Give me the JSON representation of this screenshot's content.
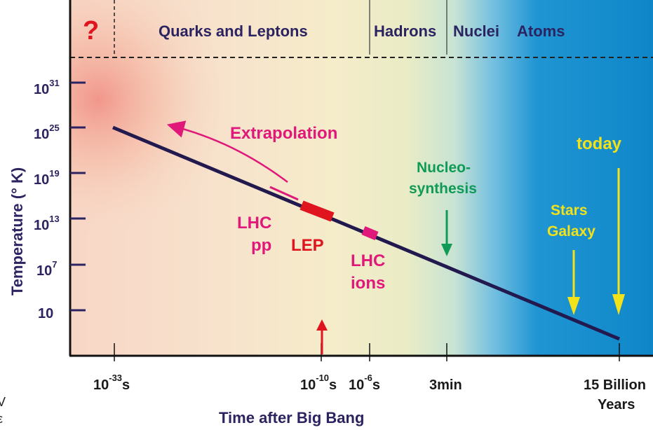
{
  "header": {
    "question_mark": "?",
    "eras": [
      "Quarks and Leptons",
      "Hadrons",
      "Nuclei",
      "Atoms"
    ]
  },
  "y_axis": {
    "title": "Temperature (° K)",
    "ticks": [
      {
        "base": "10",
        "exp": "31"
      },
      {
        "base": "10",
        "exp": "25"
      },
      {
        "base": "10",
        "exp": "19"
      },
      {
        "base": "10",
        "exp": "13"
      },
      {
        "base": "10",
        "exp": "7"
      },
      {
        "base": "10",
        "exp": ""
      }
    ]
  },
  "x_axis": {
    "title": "Time after Big Bang",
    "ticks": [
      {
        "base": "10",
        "exp": "-33",
        "unit": "s"
      },
      {
        "base": "10",
        "exp": "-10",
        "unit": "s"
      },
      {
        "base": "10",
        "exp": "-6",
        "unit": "s"
      },
      {
        "base": "",
        "exp": "",
        "unit": "3min"
      },
      {
        "base": "",
        "exp": "",
        "unit": "15 Billion"
      }
    ],
    "years_label": "Years"
  },
  "annotations": {
    "extrapolation": "Extrapolation",
    "lhc_pp": [
      "LHC",
      "pp"
    ],
    "lep": "LEP",
    "lhc_ions": [
      "LHC",
      "ions"
    ],
    "nucleosynthesis": [
      "Nucleo-",
      "synthesis"
    ],
    "stars_galaxy": [
      "Stars",
      "Galaxy"
    ],
    "today": "today"
  },
  "cut_off_margin_text": [
    "V",
    "ε"
  ],
  "colors": {
    "line": "#22194f",
    "magenta": "#e0187a",
    "red": "#e0141e",
    "green": "#0f9a55",
    "yellow": "#f2e21a",
    "bg_left": "#f7cfc0",
    "bg_mid": "#f5ecc8",
    "bg_right": "#1a8fd0"
  }
}
